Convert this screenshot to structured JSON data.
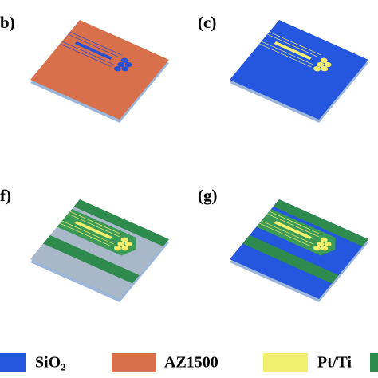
{
  "panels": [
    {
      "label": "b)"
    },
    {
      "label": "(c)"
    },
    {
      "label": "f)"
    },
    {
      "label": "(g)"
    }
  ],
  "legend": [
    {
      "label": "SiO₂"
    },
    {
      "label": "AZ1500"
    },
    {
      "label": "Pt/Ti"
    }
  ]
}
